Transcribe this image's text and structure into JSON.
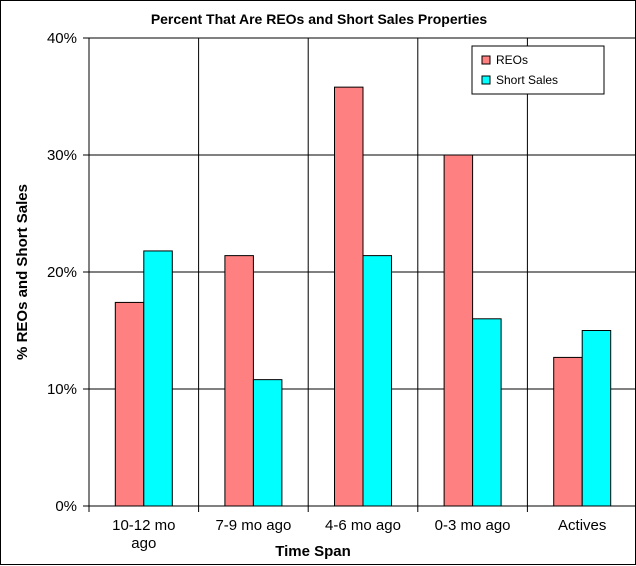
{
  "chart_data": {
    "type": "bar",
    "title": "Percent That Are REOs and Short Sales Properties",
    "xlabel": "Time Span",
    "ylabel": "% REOs and Short Sales",
    "categories": [
      [
        "10-12 mo",
        "ago"
      ],
      [
        "7-9 mo ago"
      ],
      [
        "4-6 mo ago"
      ],
      [
        "0-3 mo ago"
      ],
      [
        "Actives"
      ]
    ],
    "series": [
      {
        "name": "REOs",
        "color": "#ff8080",
        "values": [
          17.4,
          21.4,
          35.8,
          30.0,
          12.7
        ]
      },
      {
        "name": "Short Sales",
        "color": "#00ffff",
        "values": [
          21.8,
          10.8,
          21.4,
          16.0,
          15.0
        ]
      }
    ],
    "ylim": [
      0,
      40
    ],
    "yticks": [
      0,
      10,
      20,
      30,
      40
    ],
    "ytick_labels": [
      "0%",
      "10%",
      "20%",
      "30%",
      "40%"
    ],
    "grid": true,
    "legend_position": "top-right"
  }
}
